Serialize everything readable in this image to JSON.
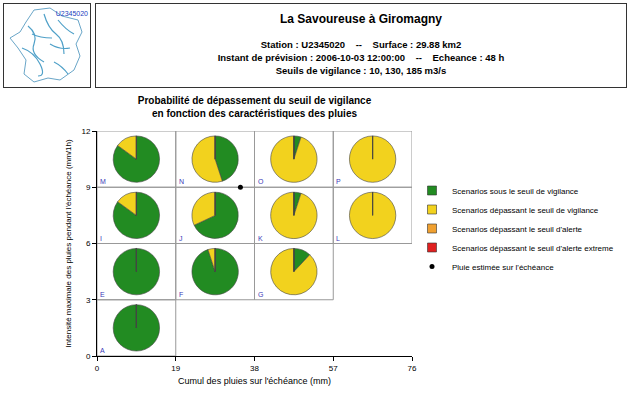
{
  "header": {
    "title": "La Savoureuse à Giromagny",
    "lines": [
      "Station : U2345020    --    Surface : 29.88 km2",
      "Instant de prévision : 2006-10-03 12:00:00    --    Echeance : 48 h",
      "Seuils de vigilance : 10, 130, 185 m3/s"
    ],
    "map_label": "U2345020"
  },
  "chart_data": {
    "type": "pie_grid",
    "title": "Probabilité de dépassement du seuil de vigilance\nen fonction des caractéristiques des pluies",
    "xlabel": "Cumul des pluies sur l'échéance (mm)",
    "ylabel": "Intensité maximale des pluies pendant l'échéance (mm/1h)",
    "xlim": [
      0,
      76
    ],
    "xticks": [
      0,
      19,
      38,
      57,
      76
    ],
    "ylim": [
      0,
      12
    ],
    "yticks": [
      0,
      3,
      6,
      9,
      12
    ],
    "grid": false,
    "legend": "right",
    "series": [
      {
        "name": "Scenarios sous le seuil de vigilance",
        "color": "#228b22"
      },
      {
        "name": "Scenarios dépassant le seuil de vigilance",
        "color": "#f2d21e"
      },
      {
        "name": "Scenarios dépassant le seuil d'alerte",
        "color": "#f0a030"
      },
      {
        "name": "Scenarios dépassant le seuil d'alerte extreme",
        "color": "#e02020"
      }
    ],
    "cells": [
      {
        "label": "A",
        "x": [
          0,
          19
        ],
        "y": [
          0,
          3
        ],
        "values": [
          100,
          0,
          0,
          0
        ]
      },
      {
        "label": "E",
        "x": [
          0,
          19
        ],
        "y": [
          3,
          6
        ],
        "values": [
          100,
          0,
          0,
          0
        ]
      },
      {
        "label": "F",
        "x": [
          19,
          38
        ],
        "y": [
          3,
          6
        ],
        "values": [
          95,
          5,
          0,
          0
        ]
      },
      {
        "label": "G",
        "x": [
          38,
          57
        ],
        "y": [
          3,
          6
        ],
        "values": [
          12,
          88,
          0,
          0
        ]
      },
      {
        "label": "I",
        "x": [
          0,
          19
        ],
        "y": [
          6,
          9
        ],
        "values": [
          85,
          15,
          0,
          0
        ]
      },
      {
        "label": "J",
        "x": [
          19,
          38
        ],
        "y": [
          6,
          9
        ],
        "values": [
          68,
          32,
          0,
          0
        ]
      },
      {
        "label": "K",
        "x": [
          38,
          57
        ],
        "y": [
          6,
          9
        ],
        "values": [
          5,
          95,
          0,
          0
        ]
      },
      {
        "label": "L",
        "x": [
          57,
          76
        ],
        "y": [
          6,
          9
        ],
        "values": [
          0,
          100,
          0,
          0
        ]
      },
      {
        "label": "M",
        "x": [
          0,
          19
        ],
        "y": [
          9,
          12
        ],
        "values": [
          85,
          15,
          0,
          0
        ]
      },
      {
        "label": "N",
        "x": [
          19,
          38
        ],
        "y": [
          9,
          12
        ],
        "values": [
          45,
          55,
          0,
          0
        ]
      },
      {
        "label": "O",
        "x": [
          38,
          57
        ],
        "y": [
          9,
          12
        ],
        "values": [
          5,
          95,
          0,
          0
        ]
      },
      {
        "label": "P",
        "x": [
          57,
          76
        ],
        "y": [
          9,
          12
        ],
        "values": [
          0,
          100,
          0,
          0
        ]
      }
    ],
    "point": {
      "name": "Pluie estimée sur l'échéance",
      "color": "#000000",
      "x": 34.6,
      "y": 9
    }
  }
}
